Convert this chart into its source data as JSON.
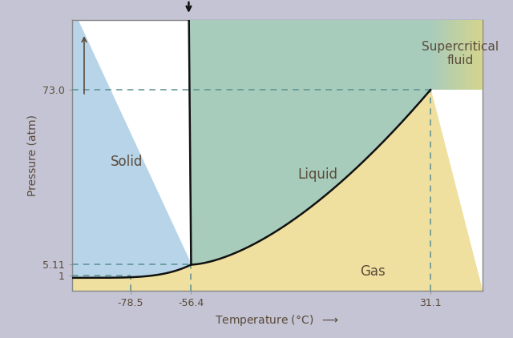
{
  "title": "",
  "xlabel": "Temperature (°C)",
  "ylabel": "Pressure (atm)",
  "xlim": [
    -100,
    50
  ],
  "ylim": [
    -5,
    100
  ],
  "x_ticks": [
    -78.5,
    -56.4,
    31.1
  ],
  "y_ticks": [
    1,
    5.11,
    73.0
  ],
  "triple_point": [
    -56.4,
    5.11
  ],
  "critical_point": [
    31.1,
    73.0
  ],
  "bg_outer": "#c4c4d4",
  "bg_plot": "#ffffff",
  "solid_color": "#b8d4e8",
  "liquid_color": "#a8ccbc",
  "gas_color": "#f0e0a0",
  "supercritical_teal": "#a8ccbc",
  "supercritical_yellow": "#e8d878",
  "line_color": "#111111",
  "dashed_color": "#5a9090",
  "label_solid": "Solid",
  "label_liquid": "Liquid",
  "label_gas": "Gas",
  "label_supercritical": "Supercritical\nfluid",
  "font_color": "#5a4a3a",
  "font_size_labels": 12,
  "font_size_ticks": 9,
  "font_size_axis_label": 10
}
